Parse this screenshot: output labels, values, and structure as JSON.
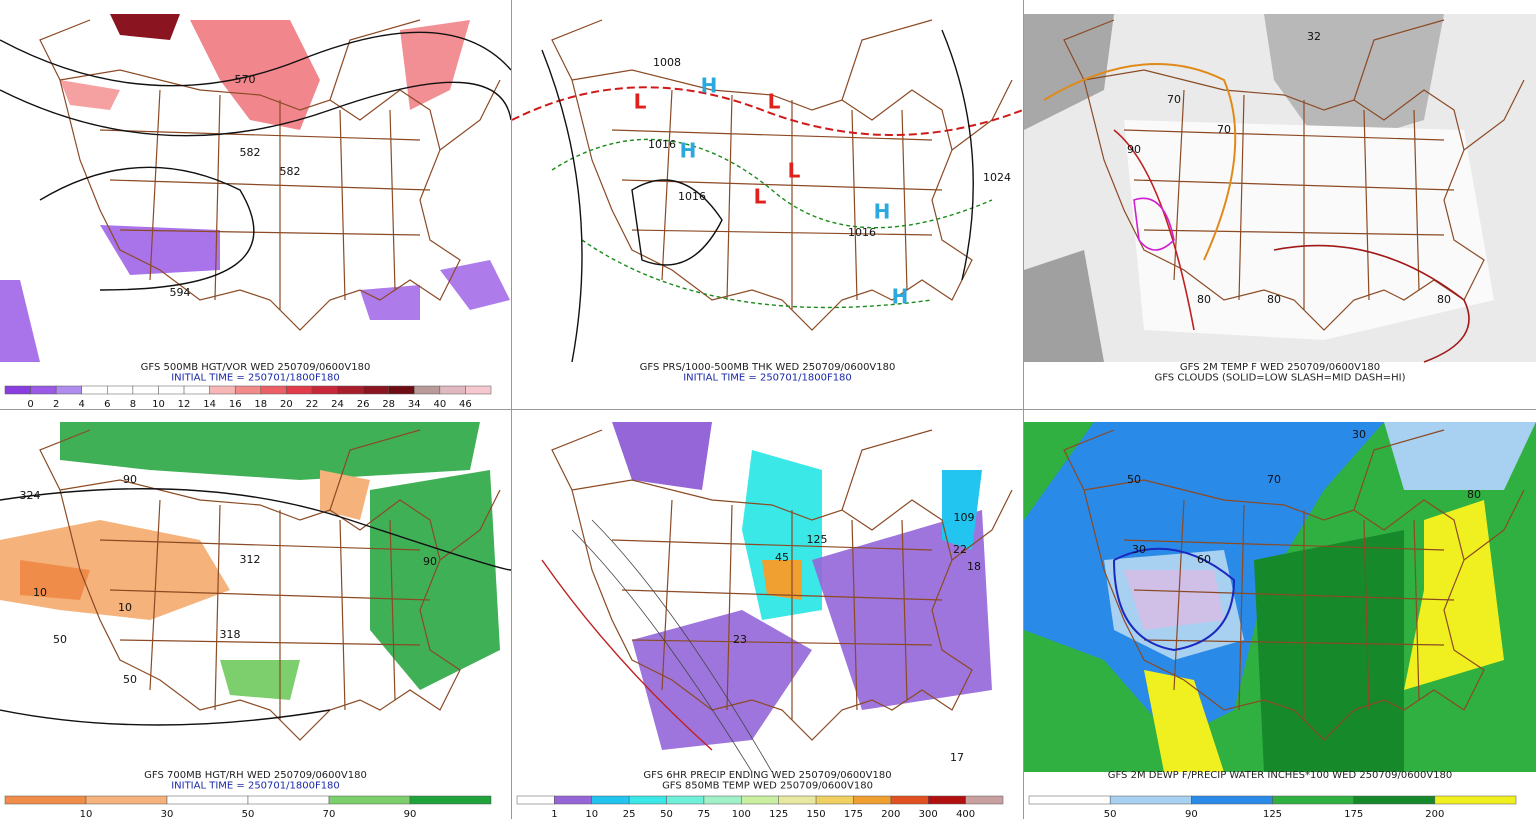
{
  "panels": [
    {
      "caption": [
        "GFS 500MB HGT/VOR WED 250709/0600V180"
      ],
      "initial_time": "INITIAL TIME = 250701/1800F180",
      "map_labels": [
        "570",
        "582",
        "582",
        "594"
      ],
      "colorbar": {
        "labels": [
          0,
          2,
          4,
          6,
          8,
          10,
          12,
          14,
          16,
          18,
          20,
          22,
          24,
          26,
          28,
          34,
          40,
          46
        ],
        "colors": [
          "#8a3ee0",
          "#9a5ae6",
          "#b08cee",
          "#ffffff",
          "#ffffff",
          "#ffffff",
          "#ffffff",
          "#ffffff",
          "#f7b7b7",
          "#f28a8a",
          "#ec5f66",
          "#e23c4a",
          "#c8283a",
          "#a81e2c",
          "#8a1420",
          "#6e0c14",
          "#b89a9a",
          "#e0b8c0",
          "#f5c8d0"
        ]
      }
    },
    {
      "caption": [
        "GFS PRS/1000-500MB THK WED 250709/0600V180"
      ],
      "initial_time": "INITIAL TIME = 250701/1800F180",
      "map_labels": [
        "1008",
        "1016",
        "1016",
        "1016",
        "1024",
        "L",
        "L",
        "L",
        "L",
        "H",
        "H",
        "H",
        "H"
      ]
    },
    {
      "caption": [
        "GFS 2M TEMP F WED 250709/0600V180",
        "GFS CLOUDS (SOLID=LOW SLASH=MID DASH=HI)"
      ],
      "map_labels": [
        "32",
        "70",
        "70",
        "80",
        "80",
        "80",
        "90"
      ]
    },
    {
      "caption": [
        "GFS 700MB HGT/RH WED 250709/0600V180"
      ],
      "initial_time": "INITIAL TIME = 250701/1800F180",
      "map_labels": [
        "324",
        "312",
        "318",
        "50",
        "50",
        "90",
        "90",
        "10",
        "10"
      ],
      "colorbar": {
        "labels": [
          10,
          30,
          50,
          70,
          90
        ],
        "colors": [
          "#f08c4a",
          "#f5b27a",
          "#ffffff",
          "#ffffff",
          "#7ccf6c",
          "#1ea23a"
        ]
      }
    },
    {
      "caption": [
        "GFS 6HR PRECIP ENDING WED 250709/0600V180",
        "GFS 850MB TEMP WED 250709/0600V180"
      ],
      "map_labels": [
        "109",
        "22",
        "18",
        "125",
        "45",
        "23",
        "17"
      ],
      "colorbar": {
        "labels": [
          1,
          10,
          25,
          50,
          75,
          100,
          125,
          150,
          175,
          200,
          300,
          400
        ],
        "colors": [
          "#ffffff",
          "#9466d8",
          "#22c4f0",
          "#3be8e8",
          "#70f0d8",
          "#a0f0c8",
          "#c8f0a0",
          "#e8e8a0",
          "#f0d060",
          "#f0a030",
          "#e05020",
          "#b01010",
          "#c8a0a0"
        ]
      }
    },
    {
      "caption": [
        "GFS 2M DEWP F/PRECIP WATER INCHES*100 WED 250709/0600V180"
      ],
      "map_labels": [
        "30",
        "30",
        "50",
        "60",
        "70",
        "80"
      ],
      "colorbar": {
        "labels": [
          50,
          90,
          125,
          175,
          200
        ],
        "colors": [
          "#ffffff",
          "#a8d0f0",
          "#2a8ae8",
          "#30b040",
          "#168a2a",
          "#f0f020"
        ]
      }
    }
  ]
}
